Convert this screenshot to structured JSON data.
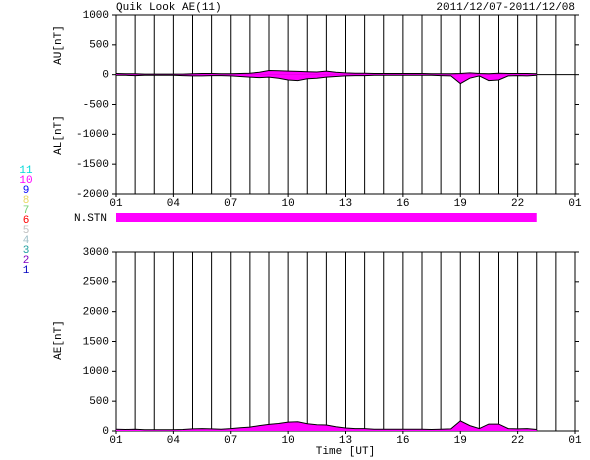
{
  "chart_data": [
    {
      "type": "area",
      "title": "Quik Look AE(11)",
      "subtitle": "2011/12/07-2011/12/08",
      "ylabels": [
        "AU[nT]",
        "AL[nT]"
      ],
      "x": [
        0,
        0.5,
        1,
        1.5,
        2,
        2.5,
        3,
        3.5,
        4,
        4.5,
        5,
        5.5,
        6,
        6.5,
        7,
        7.5,
        8,
        8.5,
        9,
        9.5,
        10,
        10.5,
        11,
        11.5,
        12,
        12.5,
        13,
        13.5,
        14,
        14.5,
        15,
        15.5,
        16,
        16.5,
        17,
        17.5,
        18,
        18.5,
        19,
        19.5,
        20,
        20.5,
        21,
        21.5,
        22
      ],
      "series": [
        {
          "name": "AU",
          "color": "#ff00ff",
          "values": [
            20,
            15,
            15,
            10,
            10,
            10,
            10,
            10,
            15,
            20,
            20,
            15,
            15,
            20,
            25,
            40,
            70,
            65,
            60,
            55,
            50,
            45,
            60,
            40,
            30,
            25,
            25,
            20,
            20,
            20,
            20,
            20,
            20,
            15,
            15,
            15,
            20,
            30,
            20,
            15,
            25,
            20,
            20,
            20,
            15
          ]
        },
        {
          "name": "AL",
          "color": "#ff00ff",
          "values": [
            -10,
            -10,
            -15,
            -10,
            -10,
            -10,
            -10,
            -15,
            -20,
            -20,
            -15,
            -15,
            -20,
            -30,
            -40,
            -50,
            -40,
            -60,
            -90,
            -100,
            -70,
            -60,
            -40,
            -30,
            -20,
            -15,
            -15,
            -10,
            -10,
            -10,
            -10,
            -10,
            -10,
            -10,
            -15,
            -20,
            -150,
            -60,
            -20,
            -100,
            -90,
            -20,
            -15,
            -20,
            -10
          ]
        }
      ],
      "xlim": [
        0,
        24
      ],
      "xticks": [
        {
          "value": 0,
          "label": "01"
        },
        {
          "value": 3,
          "label": "04"
        },
        {
          "value": 6,
          "label": "07"
        },
        {
          "value": 9,
          "label": "10"
        },
        {
          "value": 12,
          "label": "13"
        },
        {
          "value": 15,
          "label": "16"
        },
        {
          "value": 18,
          "label": "19"
        },
        {
          "value": 21,
          "label": "22"
        },
        {
          "value": 24,
          "label": "01"
        }
      ],
      "xgrid_step": 1,
      "ylim": [
        -2000,
        1000
      ],
      "yticks": [
        -2000,
        -1500,
        -1000,
        -500,
        0,
        500,
        1000
      ],
      "station_label": "N.STN",
      "station_color": "#ff00ff",
      "station_legend": [
        {
          "label": "11",
          "color": "#00d8d8"
        },
        {
          "label": "10",
          "color": "#ff00ff"
        },
        {
          "label": "9",
          "color": "#0000ff"
        },
        {
          "label": "8",
          "color": "#e8d860"
        },
        {
          "label": "7",
          "color": "#70d070"
        },
        {
          "label": "6",
          "color": "#ff0000"
        },
        {
          "label": "5",
          "color": "#c0c0c0"
        },
        {
          "label": "4",
          "color": "#a0c0c8"
        },
        {
          "label": "3",
          "color": "#20a0a0"
        },
        {
          "label": "2",
          "color": "#8000c0"
        },
        {
          "label": "1",
          "color": "#0000c0"
        }
      ]
    },
    {
      "type": "area",
      "ylabels": [
        "AE[nT]"
      ],
      "xlabel": "Time [UT]",
      "x": [
        0,
        0.5,
        1,
        1.5,
        2,
        2.5,
        3,
        3.5,
        4,
        4.5,
        5,
        5.5,
        6,
        6.5,
        7,
        7.5,
        8,
        8.5,
        9,
        9.5,
        10,
        10.5,
        11,
        11.5,
        12,
        12.5,
        13,
        13.5,
        14,
        14.5,
        15,
        15.5,
        16,
        16.5,
        17,
        17.5,
        18,
        18.5,
        19,
        19.5,
        20,
        20.5,
        21,
        21.5,
        22
      ],
      "series": [
        {
          "name": "AE",
          "color": "#ff00ff",
          "values": [
            30,
            25,
            30,
            20,
            20,
            20,
            20,
            25,
            35,
            40,
            35,
            30,
            40,
            55,
            65,
            90,
            110,
            125,
            150,
            155,
            120,
            105,
            100,
            70,
            50,
            40,
            40,
            30,
            30,
            30,
            30,
            30,
            30,
            25,
            30,
            35,
            170,
            90,
            40,
            115,
            115,
            40,
            35,
            40,
            25
          ]
        }
      ],
      "xlim": [
        0,
        24
      ],
      "xticks": [
        {
          "value": 0,
          "label": "01"
        },
        {
          "value": 3,
          "label": "04"
        },
        {
          "value": 6,
          "label": "07"
        },
        {
          "value": 9,
          "label": "10"
        },
        {
          "value": 12,
          "label": "13"
        },
        {
          "value": 15,
          "label": "16"
        },
        {
          "value": 18,
          "label": "19"
        },
        {
          "value": 21,
          "label": "22"
        },
        {
          "value": 24,
          "label": "01"
        }
      ],
      "xgrid_step": 1,
      "ylim": [
        0,
        3000
      ],
      "yticks": [
        0,
        500,
        1000,
        1500,
        2000,
        2500,
        3000
      ]
    }
  ]
}
